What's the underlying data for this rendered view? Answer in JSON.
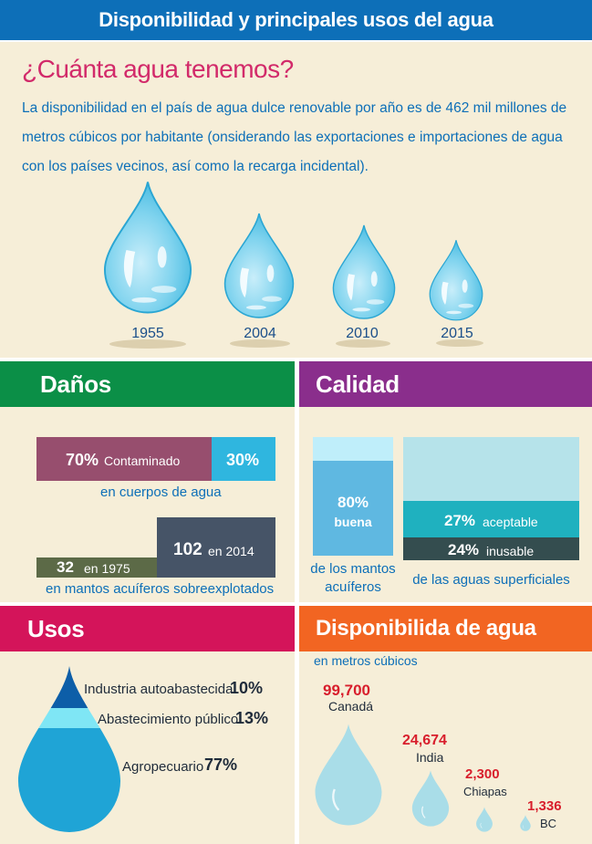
{
  "header": {
    "title": "Disponibilidad y principales usos del agua"
  },
  "intro": {
    "question": "¿Cuánta agua tenemos?",
    "text": "La disponibilidad en el país de agua dulce renovable por año  es de 462 mil millones de metros cúbicos por habitante (onsiderando las exportaciones e importaciones de agua con los países vecinos, así como la recarga incidental).",
    "years": [
      "1955",
      "2004",
      "2010",
      "2015"
    ]
  },
  "danos": {
    "title": "Daños",
    "contaminado_pct": "70%",
    "contaminado_label": "Contaminado",
    "rest_pct": "30%",
    "bar1_caption": "en cuerpos de agua",
    "v1975": "32",
    "v1975_label": "en 1975",
    "v2014": "102",
    "v2014_label": "en 2014",
    "bar2_caption": "en mantos acuíferos sobreexplotados"
  },
  "calidad": {
    "title": "Calidad",
    "buena_pct": "80%",
    "buena_label": "buena",
    "mantos_caption_1": "de los mantos",
    "mantos_caption_2": "acuíferos",
    "aceptable_pct": "27%",
    "aceptable_label": "aceptable",
    "inusable_pct": "24%",
    "inusable_label": "inusable",
    "superficiales_caption": "de las aguas superficiales"
  },
  "usos": {
    "title": "Usos",
    "items": [
      {
        "label": "Industria autoabastecida",
        "pct": "10%"
      },
      {
        "label": "Abastecimiento público",
        "pct": "13%"
      },
      {
        "label": "Agropecuario",
        "pct": "77%"
      }
    ]
  },
  "disponibilidad": {
    "title": "Disponibilida de agua",
    "subtitle": "en metros cúbicos",
    "items": [
      {
        "value": "99,700",
        "place": "Canadá"
      },
      {
        "value": "24,674",
        "place": "India"
      },
      {
        "value": "2,300",
        "place": "Chiapas"
      },
      {
        "value": "1,336",
        "place": "BC"
      }
    ]
  },
  "colors": {
    "header": "#0d6fb8",
    "danos": "#0b8f47",
    "calidad": "#8a2e8c",
    "usos": "#d4145a",
    "disponibilidad": "#f26522"
  }
}
